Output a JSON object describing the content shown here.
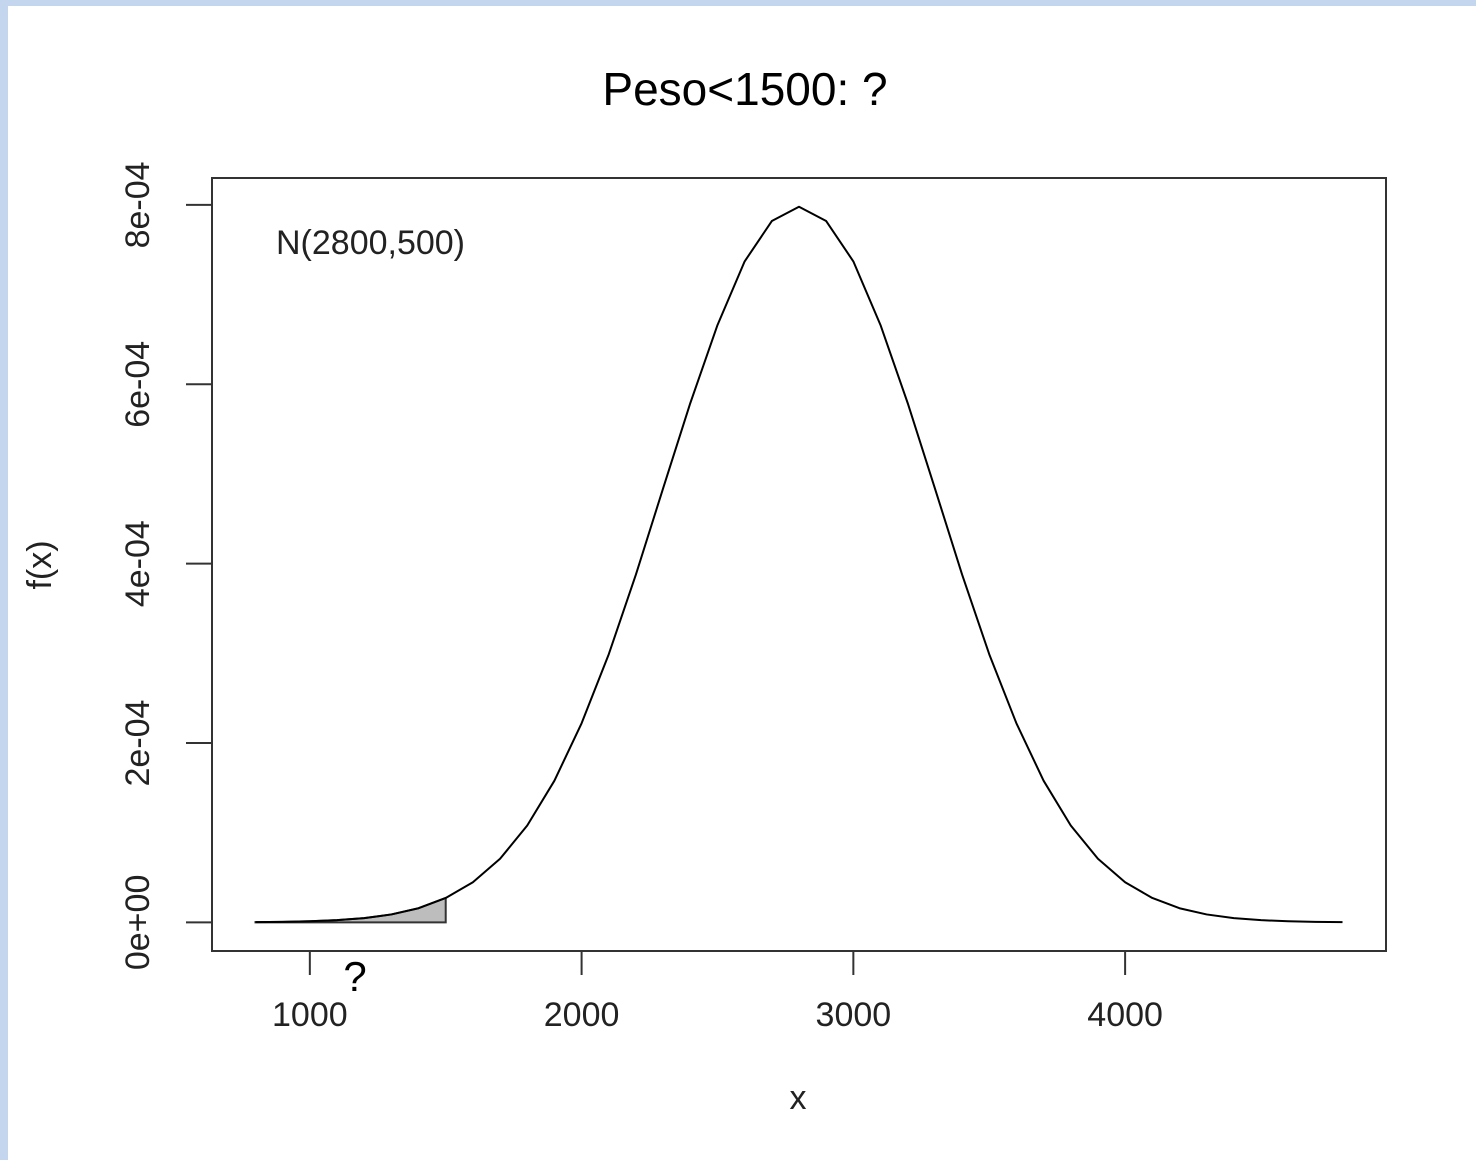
{
  "chart_data": {
    "type": "line",
    "title": "Peso<1500: ?",
    "xlabel": "x",
    "ylabel": "f(x)",
    "annotations": [
      "N(2800,500)",
      "?"
    ],
    "x": [
      800,
      900,
      1000,
      1100,
      1200,
      1300,
      1400,
      1500,
      1600,
      1700,
      1800,
      1900,
      2000,
      2100,
      2200,
      2300,
      2400,
      2500,
      2600,
      2700,
      2800,
      2900,
      3000,
      3100,
      3200,
      3300,
      3400,
      3500,
      3600,
      3700,
      3800,
      3900,
      4000,
      4100,
      4200,
      4300,
      4400,
      4500,
      4600,
      4700,
      4800
    ],
    "values": [
      2.7e-07,
      5.8e-07,
      1.22e-06,
      2.46e-06,
      4.77e-06,
      8.86e-06,
      1.58e-05,
      2.72e-05,
      4.48e-05,
      7.09e-05,
      0.000108,
      0.000158,
      0.000222,
      0.000299,
      0.000388,
      0.000484,
      0.000579,
      0.000666,
      0.000737,
      0.000782,
      0.000798,
      0.000782,
      0.000737,
      0.000666,
      0.000579,
      0.000484,
      0.000388,
      0.000299,
      0.000222,
      0.000158,
      0.000108,
      7.09e-05,
      4.48e-05,
      2.72e-05,
      1.58e-05,
      8.86e-06,
      4.77e-06,
      2.46e-06,
      1.22e-06,
      5.8e-07,
      2.7e-07
    ],
    "color": "#000000",
    "shaded_region": {
      "xlim": [
        800,
        1500
      ],
      "color": "#bdbdbd"
    },
    "xlim": [
      640,
      4960
    ],
    "xticks": [
      1000,
      2000,
      3000,
      4000
    ],
    "ylim": [
      -3.19e-05,
      0.00083
    ],
    "yticks": [
      {
        "value": 0,
        "label": "0e+00"
      },
      {
        "value": 0.0002,
        "label": "2e-04"
      },
      {
        "value": 0.0004,
        "label": "4e-04"
      },
      {
        "value": 0.0006,
        "label": "6e-04"
      },
      {
        "value": 0.0008,
        "label": "8e-04"
      }
    ]
  }
}
